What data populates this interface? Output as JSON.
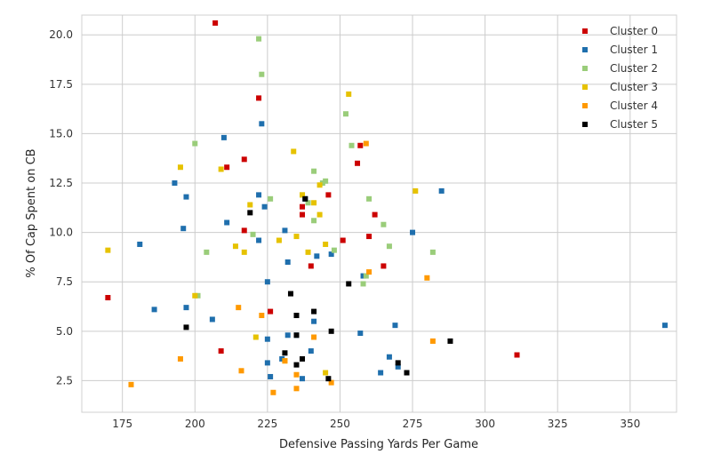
{
  "chart_data": {
    "type": "scatter",
    "xlabel": "Defensive Passing Yards Per Game",
    "ylabel": "% Of Cap Spent on CB",
    "xlim": [
      161,
      366
    ],
    "ylim": [
      0.9,
      21.0
    ],
    "xticks": [
      175,
      200,
      225,
      250,
      275,
      300,
      325,
      350
    ],
    "yticks": [
      2.5,
      5.0,
      7.5,
      10.0,
      12.5,
      15.0,
      17.5,
      20.0
    ],
    "xtick_labels": [
      "175",
      "200",
      "225",
      "250",
      "275",
      "300",
      "325",
      "350"
    ],
    "ytick_labels": [
      "2.5",
      "5.0",
      "7.5",
      "10.0",
      "12.5",
      "15.0",
      "17.5",
      "20.0"
    ],
    "grid": true,
    "legend_position": "top-right",
    "series": [
      {
        "name": "Cluster 0",
        "color": "#cc0000",
        "points": [
          [
            207,
            20.6
          ],
          [
            222,
            16.8
          ],
          [
            217,
            13.7
          ],
          [
            211,
            13.3
          ],
          [
            257,
            14.4
          ],
          [
            256,
            13.5
          ],
          [
            237,
            11.3
          ],
          [
            237,
            10.9
          ],
          [
            246,
            11.9
          ],
          [
            217,
            10.1
          ],
          [
            262,
            10.9
          ],
          [
            260,
            9.8
          ],
          [
            251,
            9.6
          ],
          [
            240,
            8.3
          ],
          [
            265,
            8.3
          ],
          [
            170,
            6.7
          ],
          [
            226,
            6.0
          ],
          [
            209,
            4.0
          ],
          [
            311,
            3.8
          ]
        ]
      },
      {
        "name": "Cluster 1",
        "color": "#1f6fad",
        "points": [
          [
            223,
            15.5
          ],
          [
            210,
            14.8
          ],
          [
            193,
            12.5
          ],
          [
            285,
            12.1
          ],
          [
            197,
            11.8
          ],
          [
            222,
            11.9
          ],
          [
            224,
            11.3
          ],
          [
            238,
            11.7
          ],
          [
            196,
            10.2
          ],
          [
            275,
            10.0
          ],
          [
            211,
            10.5
          ],
          [
            222,
            9.6
          ],
          [
            181,
            9.4
          ],
          [
            231,
            10.1
          ],
          [
            232,
            8.5
          ],
          [
            242,
            8.8
          ],
          [
            247,
            8.9
          ],
          [
            258,
            7.8
          ],
          [
            225,
            7.5
          ],
          [
            186,
            6.1
          ],
          [
            197,
            6.2
          ],
          [
            206,
            5.6
          ],
          [
            241,
            5.5
          ],
          [
            269,
            5.3
          ],
          [
            257,
            4.9
          ],
          [
            225,
            4.6
          ],
          [
            232,
            4.8
          ],
          [
            235,
            4.8
          ],
          [
            240,
            4.0
          ],
          [
            225,
            3.4
          ],
          [
            230,
            3.6
          ],
          [
            267,
            3.7
          ],
          [
            264,
            2.9
          ],
          [
            270,
            3.2
          ],
          [
            226,
            2.7
          ],
          [
            237,
            2.6
          ],
          [
            362,
            5.3
          ]
        ]
      },
      {
        "name": "Cluster 2",
        "color": "#9acd7a",
        "points": [
          [
            222,
            19.8
          ],
          [
            223,
            18.0
          ],
          [
            252,
            16.0
          ],
          [
            254,
            14.4
          ],
          [
            200,
            14.5
          ],
          [
            241,
            13.1
          ],
          [
            244,
            12.5
          ],
          [
            245,
            12.6
          ],
          [
            237,
            11.9
          ],
          [
            226,
            11.7
          ],
          [
            260,
            11.7
          ],
          [
            239,
            11.5
          ],
          [
            265,
            10.4
          ],
          [
            241,
            10.6
          ],
          [
            220,
            9.9
          ],
          [
            267,
            9.3
          ],
          [
            282,
            9.0
          ],
          [
            204,
            9.0
          ],
          [
            248,
            9.1
          ],
          [
            259,
            7.8
          ],
          [
            258,
            7.4
          ],
          [
            201,
            6.8
          ]
        ]
      },
      {
        "name": "Cluster 3",
        "color": "#e6c200",
        "points": [
          [
            253,
            17.0
          ],
          [
            195,
            13.3
          ],
          [
            209,
            13.2
          ],
          [
            234,
            14.1
          ],
          [
            243,
            12.4
          ],
          [
            276,
            12.1
          ],
          [
            237,
            11.9
          ],
          [
            219,
            11.4
          ],
          [
            241,
            11.5
          ],
          [
            243,
            10.9
          ],
          [
            235,
            9.8
          ],
          [
            170,
            9.1
          ],
          [
            214,
            9.3
          ],
          [
            217,
            9.0
          ],
          [
            229,
            9.6
          ],
          [
            239,
            9.0
          ],
          [
            245,
            9.4
          ],
          [
            200,
            6.8
          ],
          [
            221,
            4.7
          ],
          [
            231,
            3.5
          ],
          [
            245,
            2.9
          ]
        ]
      },
      {
        "name": "Cluster 4",
        "color": "#ff9900",
        "points": [
          [
            259,
            14.5
          ],
          [
            260,
            8.0
          ],
          [
            280,
            7.7
          ],
          [
            215,
            6.2
          ],
          [
            223,
            5.8
          ],
          [
            241,
            4.7
          ],
          [
            282,
            4.5
          ],
          [
            195,
            3.6
          ],
          [
            231,
            3.5
          ],
          [
            216,
            3.0
          ],
          [
            235,
            2.8
          ],
          [
            247,
            2.4
          ],
          [
            178,
            2.3
          ],
          [
            227,
            1.9
          ],
          [
            235,
            2.1
          ]
        ]
      },
      {
        "name": "Cluster 5",
        "color": "#000000",
        "points": [
          [
            219,
            11.0
          ],
          [
            238,
            11.7
          ],
          [
            233,
            6.9
          ],
          [
            253,
            7.4
          ],
          [
            241,
            6.0
          ],
          [
            235,
            5.8
          ],
          [
            197,
            5.2
          ],
          [
            247,
            5.0
          ],
          [
            235,
            4.8
          ],
          [
            288,
            4.5
          ],
          [
            237,
            3.6
          ],
          [
            231,
            3.9
          ],
          [
            235,
            3.3
          ],
          [
            270,
            3.4
          ],
          [
            273,
            2.9
          ],
          [
            246,
            2.6
          ]
        ]
      }
    ]
  }
}
